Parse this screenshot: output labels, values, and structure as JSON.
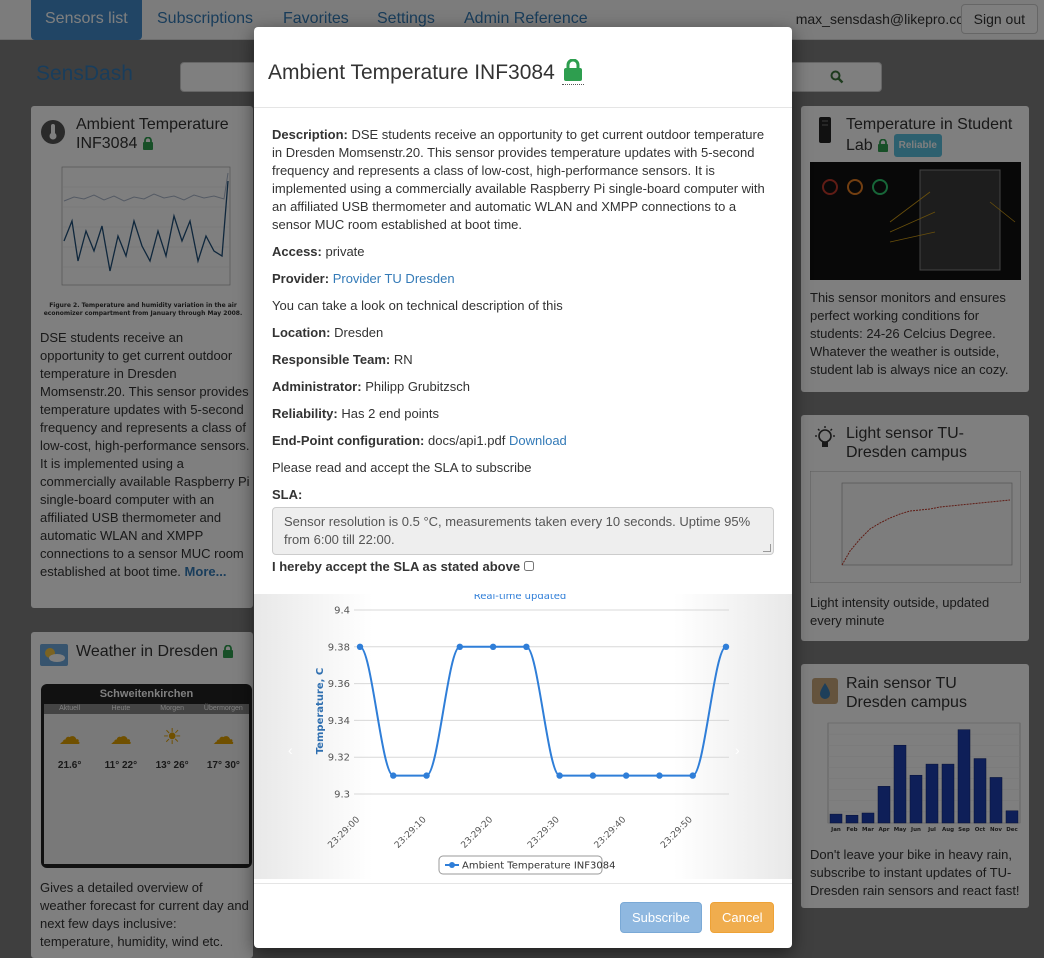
{
  "navbar": {
    "items": [
      "Sensors list",
      "Subscriptions",
      "Favorites",
      "Settings",
      "Admin Reference"
    ],
    "user_email": "max_sensdash@likepro.co",
    "signout_label": "Sign out"
  },
  "brand": "SensDash",
  "cards": {
    "ambient": {
      "title": "Ambient Temperature INF3084",
      "figure_caption": "Figure 2. Temperature and humidity variation in the air economizer compartment from January through May 2008.",
      "text": "DSE students receive an opportunity to get current outdoor temperature in Dresden Momsenstr.20. This sensor provides temperature updates with 5-second frequency and represents a class of low-cost, high-performance sensors. It is implemented using a commercially available Raspberry Pi single-board computer with an affiliated USB thermometer and automatic WLAN and XMPP connections to a sensor MUC room established at boot time.",
      "more": "More..."
    },
    "weather": {
      "title": "Weather in Dresden",
      "widget_city": "Schweitenkirchen",
      "widget_days": [
        "Aktuell",
        "Heute",
        "Morgen",
        "Übermorgen"
      ],
      "widget_temps": [
        "21.6°",
        "11° 22°",
        "13° 26°",
        "17° 30°"
      ],
      "text": "Gives a detailed overview of weather forecast for current day and next few days inclusive: temperature, humidity, wind etc."
    },
    "student_lab": {
      "title": "Temperature in Student Lab",
      "badge": "Reliable",
      "text": "This sensor monitors and ensures perfect working conditions for students: 24-26 Celcius Degree. Whatever the weather is outside, student lab is always nice an cozy."
    },
    "light": {
      "title": "Light sensor TU-Dresden campus",
      "text": "Light intensity outside, updated every minute"
    },
    "rain": {
      "title": "Rain sensor TU Dresden campus",
      "months": [
        "Jan",
        "Feb",
        "Mar",
        "Apr",
        "May",
        "Jun",
        "Jul",
        "Aug",
        "Sep",
        "Oct",
        "Nov",
        "Dec"
      ],
      "values": [
        40,
        35,
        45,
        165,
        350,
        215,
        265,
        265,
        420,
        290,
        205,
        55
      ],
      "ylim": [
        0,
        450
      ],
      "text": "Don't leave your bike in heavy rain, subscribe to instant updates of TU-Dresden rain sensors and react fast!"
    }
  },
  "modal": {
    "title": "Ambient Temperature INF3084",
    "description_label": "Description:",
    "description": "DSE students receive an opportunity to get current outdoor temperature in Dresden Momsenstr.20. This sensor provides temperature updates with 5-second frequency and represents a class of low-cost, high-performance sensors. It is implemented using a commercially available Raspberry Pi single-board computer with an affiliated USB thermometer and automatic WLAN and XMPP connections to a sensor MUC room established at boot time.",
    "access_label": "Access:",
    "access": "private",
    "provider_label": "Provider:",
    "provider": "Provider TU Dresden",
    "tech_note": "You can take a look on technical description of this",
    "location_label": "Location:",
    "location": "Dresden",
    "team_label": "Responsible Team:",
    "team": "RN",
    "admin_label": "Administrator:",
    "admin": "Philipp Grubitzsch",
    "reliability_label": "Reliability:",
    "reliability": "Has 2 end points",
    "endpoint_label": "End-Point configuration:",
    "endpoint_file": "docs/api1.pdf",
    "download": "Download",
    "sla_prompt": "Please read and accept the SLA to subscribe",
    "sla_label": "SLA:",
    "sla_text": "Sensor resolution is 0.5 °C, measurements taken every 10 seconds. Uptime 95% from 6:00 till 22:00.",
    "accept_label": "I hereby accept the SLA as stated above",
    "subscribe": "Subscribe",
    "cancel": "Cancel"
  },
  "chart_data": {
    "type": "line",
    "subtitle": "Real-time updated",
    "ylabel": "Temperature, C",
    "ylim": [
      9.3,
      9.4
    ],
    "yticks": [
      "9.3",
      "9.32",
      "9.34",
      "9.36",
      "9.38",
      "9.4"
    ],
    "xticks": [
      "23:29:00",
      "23:29:10",
      "23:29:20",
      "23:29:30",
      "23:29:40",
      "23:29:50"
    ],
    "x": [
      "23:29:00",
      "23:29:05",
      "23:29:10",
      "23:29:15",
      "23:29:20",
      "23:29:25",
      "23:29:30",
      "23:29:35",
      "23:29:40",
      "23:29:45",
      "23:29:50",
      "23:29:55"
    ],
    "series": [
      {
        "name": "Ambient Temperature INF3084",
        "values": [
          9.38,
          9.31,
          9.31,
          9.38,
          9.38,
          9.38,
          9.31,
          9.31,
          9.31,
          9.31,
          9.31,
          9.38
        ]
      }
    ],
    "color": "#2f7ed8",
    "legend_position": "bottom-center"
  }
}
